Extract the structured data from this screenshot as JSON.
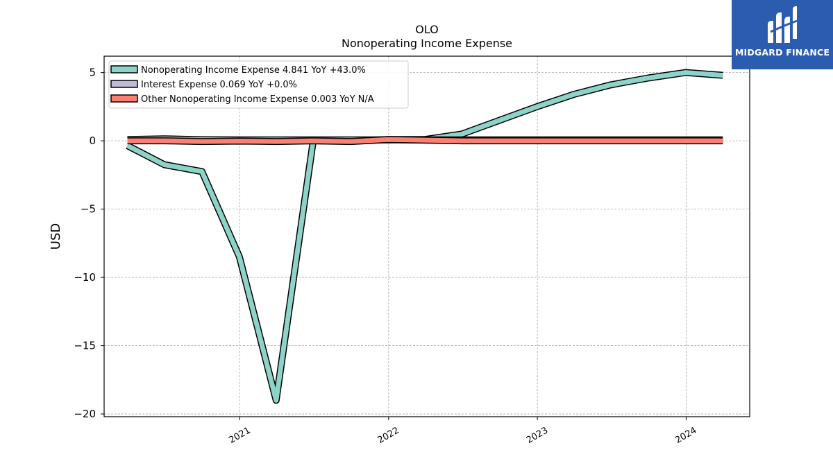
{
  "chart_data": {
    "type": "line",
    "title": "OLO",
    "subtitle": "Nonoperating Income Expense",
    "xlabel": "",
    "ylabel": "USD",
    "ylim": [
      -20.2,
      6.2
    ],
    "yticks": [
      5,
      0,
      -5,
      -10,
      -15,
      -20
    ],
    "ytick_labels": [
      "5",
      "0",
      "−5",
      "−10",
      "−15",
      "−20"
    ],
    "xlim": [
      "2020-02-03",
      "2024-06-05"
    ],
    "xticks": [
      "2021-01-01",
      "2022-01-01",
      "2023-01-01",
      "2024-01-01"
    ],
    "xtick_labels": [
      "2021",
      "2022",
      "2023",
      "2024"
    ],
    "grid": true,
    "legend_position": "top-left",
    "series": [
      {
        "name": "Nonoperating Income Expense",
        "legend_label": "Nonoperating Income Expense  4.841 YoY +43.0%",
        "color": "#8dd3c7",
        "x": [
          "2020-03-31",
          "2020-06-30",
          "2020-09-30",
          "2020-12-31",
          "2021-03-31",
          "2021-06-30",
          "2021-09-30",
          "2021-12-31",
          "2022-03-31",
          "2022-06-30",
          "2022-09-30",
          "2022-12-31",
          "2023-03-31",
          "2023-06-30",
          "2023-09-30",
          "2023-12-31",
          "2024-03-31"
        ],
        "y": [
          -0.35,
          -1.75,
          -2.25,
          -8.5,
          -19.0,
          0.0,
          0.0,
          0.1,
          0.1,
          0.5,
          1.5,
          2.5,
          3.4,
          4.1,
          4.6,
          5.0,
          4.8
        ]
      },
      {
        "name": "Interest Expense",
        "legend_label": "Interest Expense  0.069 YoY +0.0%",
        "color": "#bebada",
        "x": [
          "2020-03-31",
          "2020-06-30",
          "2020-09-30",
          "2020-12-31",
          "2021-03-31",
          "2021-06-30",
          "2021-09-30",
          "2021-12-31",
          "2022-03-31",
          "2022-06-30",
          "2022-09-30",
          "2022-12-31",
          "2023-03-31",
          "2023-06-30",
          "2023-09-30",
          "2023-12-31",
          "2024-03-31"
        ],
        "y": [
          0.1,
          0.15,
          0.08,
          0.07,
          0.07,
          0.07,
          0.07,
          0.07,
          0.07,
          0.07,
          0.07,
          0.07,
          0.07,
          0.07,
          0.07,
          0.07,
          0.07
        ]
      },
      {
        "name": "Other Nonoperating Income Expense",
        "legend_label": "Other Nonoperating Income Expense  0.003 YoY N/A",
        "color": "#fb8072",
        "x": [
          "2020-03-31",
          "2020-06-30",
          "2020-09-30",
          "2020-12-31",
          "2021-03-31",
          "2021-06-30",
          "2021-09-30",
          "2021-12-31",
          "2022-03-31",
          "2022-06-30",
          "2022-09-30",
          "2022-12-31",
          "2023-03-31",
          "2023-06-30",
          "2023-09-30",
          "2023-12-31",
          "2024-03-31"
        ],
        "y": [
          0.0,
          0.0,
          -0.05,
          -0.02,
          -0.05,
          0.0,
          -0.05,
          0.1,
          0.05,
          0.0,
          0.0,
          0.0,
          0.0,
          0.0,
          0.0,
          0.0,
          0.0
        ]
      }
    ]
  },
  "logo": {
    "text": "MIDGARD FINANCE",
    "color": "#2a5db0"
  }
}
